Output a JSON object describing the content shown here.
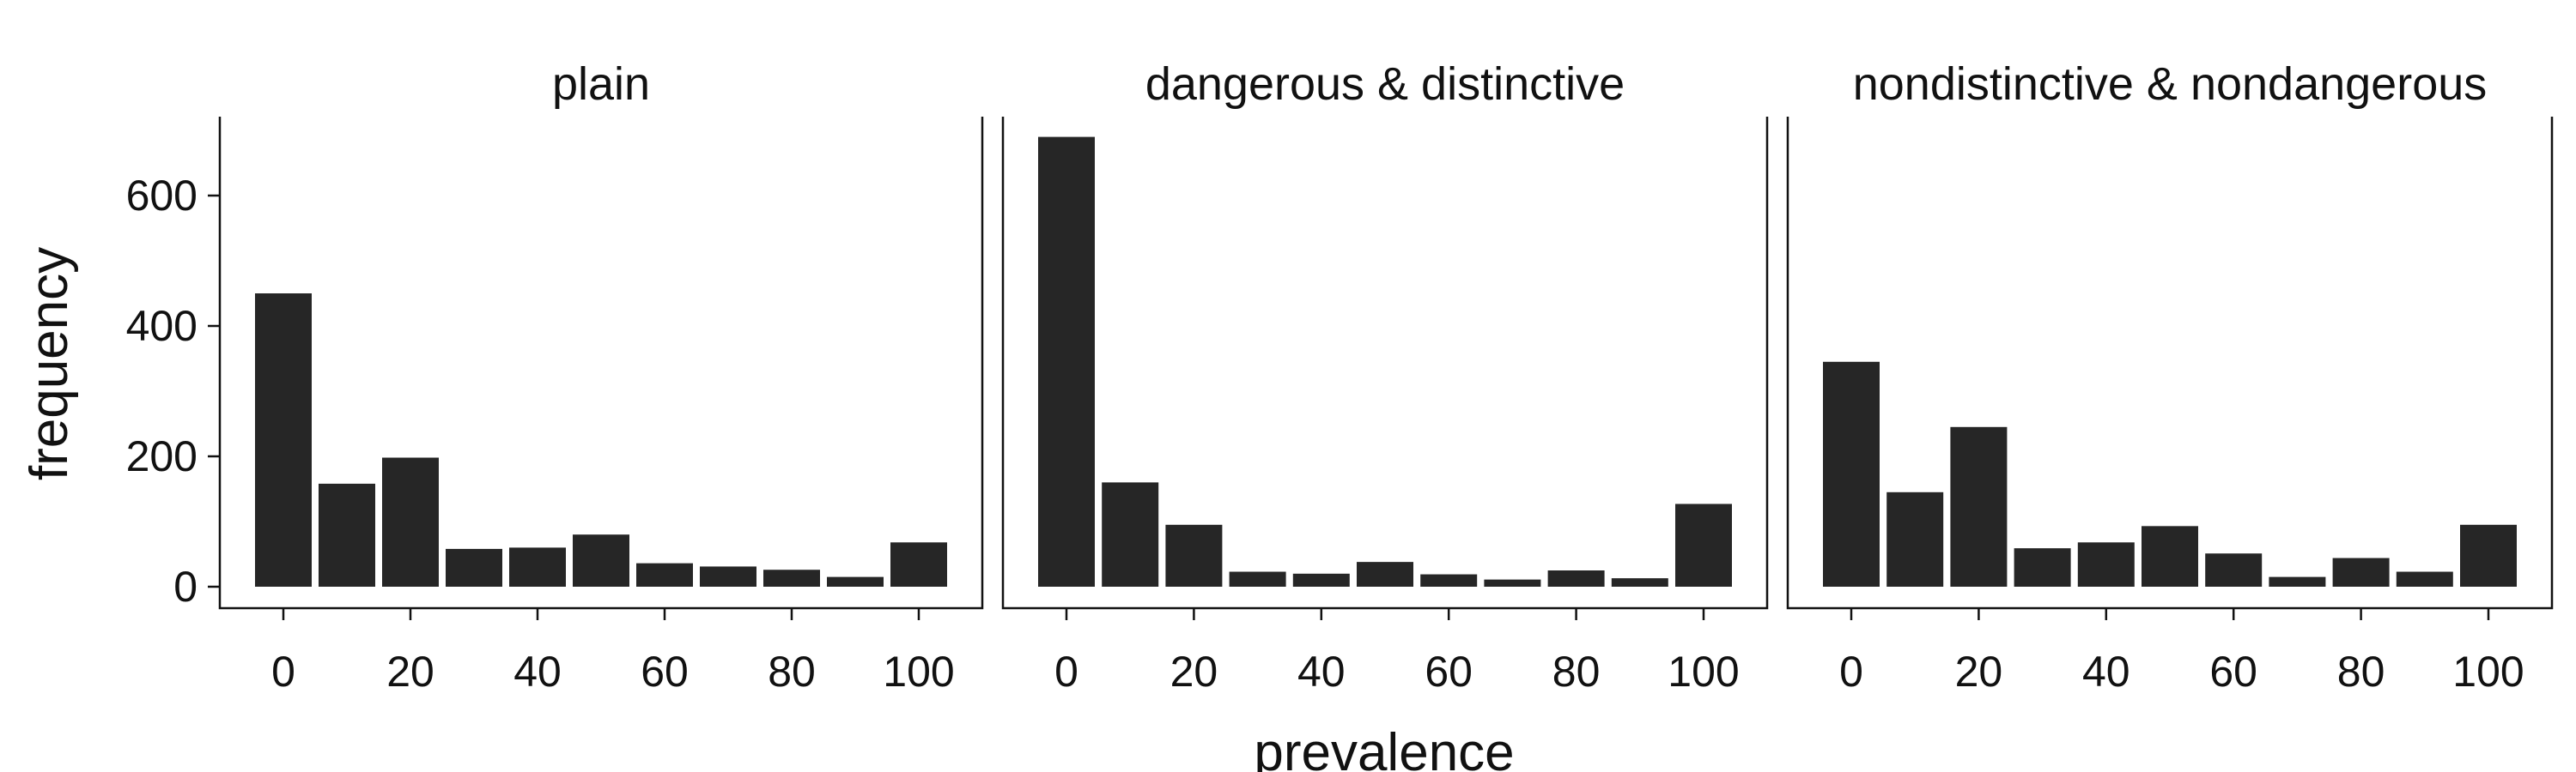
{
  "chart_data": {
    "type": "bar",
    "xlabel": "prevalence",
    "ylabel": "frequency",
    "x_ticks": [
      0,
      20,
      40,
      60,
      80,
      100
    ],
    "y_ticks": [
      0,
      200,
      400,
      600
    ],
    "ylim": [
      -30,
      720
    ],
    "xlim": [
      -10,
      110
    ],
    "bar_color": "#262626",
    "grid": false,
    "categories": [
      0,
      10,
      20,
      30,
      40,
      50,
      60,
      70,
      80,
      90,
      100
    ],
    "panels": [
      {
        "title": "plain",
        "values": [
          450,
          158,
          198,
          58,
          60,
          80,
          36,
          31,
          26,
          15,
          68
        ]
      },
      {
        "title": "dangerous & distinctive",
        "values": [
          690,
          160,
          95,
          23,
          20,
          38,
          19,
          11,
          25,
          13,
          127
        ]
      },
      {
        "title": "nondistinctive & nondangerous",
        "values": [
          345,
          145,
          245,
          59,
          68,
          93,
          51,
          15,
          44,
          23,
          95
        ]
      }
    ]
  }
}
